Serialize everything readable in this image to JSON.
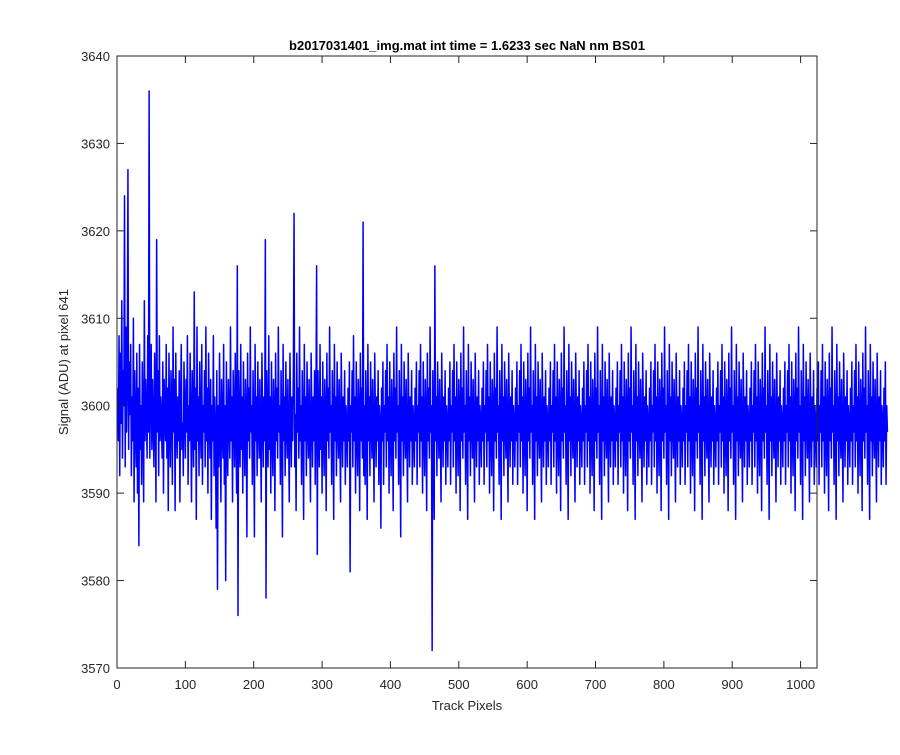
{
  "chart_data": {
    "type": "line",
    "title": "b2017031401_img.mat int time = 1.6233 sec  NaN nm BS01",
    "xlabel": "Track Pixels",
    "ylabel": "Signal (ADU) at pixel 641",
    "xlim": [
      0,
      1024
    ],
    "ylim": [
      3570,
      3640
    ],
    "xticks": [
      0,
      100,
      200,
      300,
      400,
      500,
      600,
      700,
      800,
      900,
      1000
    ],
    "yticks": [
      3570,
      3580,
      3590,
      3600,
      3610,
      3620,
      3630,
      3640
    ],
    "grid": false,
    "line_color": "#0000ff",
    "series": [
      {
        "x_start": 1,
        "x_step": 1,
        "values": [
          3602,
          3596,
          3608,
          3592,
          3606,
          3598,
          3612,
          3594,
          3604,
          3600,
          3624,
          3593,
          3609,
          3597,
          3603,
          3627,
          3595,
          3605,
          3599,
          3607,
          3592,
          3601,
          3596,
          3610,
          3589,
          3604,
          3598,
          3593,
          3606,
          3590,
          3602,
          3584,
          3607,
          3595,
          3600,
          3591,
          3605,
          3598,
          3589,
          3612,
          3596,
          3603,
          3599,
          3594,
          3608,
          3597,
          3636,
          3594,
          3601,
          3607,
          3595,
          3603,
          3598,
          3593,
          3606,
          3600,
          3589,
          3619,
          3597,
          3604,
          3592,
          3608,
          3596,
          3601,
          3598,
          3594,
          3605,
          3590,
          3603,
          3599,
          3596,
          3607,
          3594,
          3602,
          3588,
          3606,
          3598,
          3593,
          3604,
          3600,
          3591,
          3609,
          3597,
          3603,
          3588,
          3606,
          3598,
          3594,
          3601,
          3596,
          3604,
          3589,
          3600,
          3607,
          3595,
          3598,
          3592,
          3605,
          3599,
          3594,
          3603,
          3597,
          3608,
          3591,
          3600,
          3596,
          3606,
          3598,
          3589,
          3604,
          3599,
          3593,
          3613,
          3595,
          3602,
          3587,
          3609,
          3596,
          3601,
          3592,
          3605,
          3598,
          3594,
          3607,
          3591,
          3600,
          3597,
          3604,
          3593,
          3609,
          3596,
          3602,
          3590,
          3606,
          3599,
          3594,
          3603,
          3587,
          3600,
          3596,
          3608,
          3592,
          3601,
          3597,
          3586,
          3604,
          3579,
          3600,
          3593,
          3606,
          3597,
          3589,
          3603,
          3598,
          3594,
          3607,
          3591,
          3600,
          3580,
          3605,
          3597,
          3592,
          3603,
          3598,
          3594,
          3609,
          3596,
          3601,
          3589,
          3604,
          3599,
          3593,
          3606,
          3597,
          3590,
          3616,
          3576,
          3604,
          3598,
          3593,
          3607,
          3595,
          3601,
          3590,
          3605,
          3597,
          3592,
          3603,
          3599,
          3585,
          3606,
          3596,
          3602,
          3594,
          3609,
          3597,
          3600,
          3591,
          3604,
          3598,
          3585,
          3607,
          3596,
          3601,
          3592,
          3605,
          3598,
          3594,
          3603,
          3597,
          3589,
          3606,
          3599,
          3593,
          3601,
          3596,
          3619,
          3578,
          3604,
          3598,
          3593,
          3608,
          3595,
          3601,
          3590,
          3605,
          3597,
          3592,
          3603,
          3599,
          3588,
          3606,
          3596,
          3602,
          3594,
          3609,
          3597,
          3600,
          3591,
          3604,
          3598,
          3585,
          3607,
          3596,
          3601,
          3592,
          3605,
          3598,
          3594,
          3603,
          3597,
          3589,
          3606,
          3599,
          3593,
          3601,
          3596,
          3604,
          3622,
          3593,
          3599,
          3588,
          3606,
          3597,
          3602,
          3594,
          3609,
          3596,
          3600,
          3591,
          3604,
          3598,
          3587,
          3607,
          3596,
          3601,
          3592,
          3605,
          3598,
          3594,
          3603,
          3597,
          3589,
          3606,
          3599,
          3593,
          3601,
          3596,
          3604,
          3591,
          3600,
          3616,
          3583,
          3604,
          3598,
          3593,
          3607,
          3595,
          3601,
          3590,
          3605,
          3597,
          3592,
          3603,
          3599,
          3588,
          3606,
          3596,
          3602,
          3594,
          3609,
          3597,
          3600,
          3591,
          3604,
          3598,
          3587,
          3607,
          3596,
          3601,
          3592,
          3605,
          3598,
          3594,
          3603,
          3597,
          3589,
          3606,
          3599,
          3593,
          3601,
          3596,
          3604,
          3591,
          3600,
          3598,
          3593,
          3602,
          3596,
          3605,
          3581,
          3600,
          3597,
          3604,
          3593,
          3608,
          3596,
          3601,
          3590,
          3605,
          3597,
          3592,
          3603,
          3599,
          3588,
          3606,
          3596,
          3602,
          3594,
          3621,
          3592,
          3600,
          3591,
          3604,
          3598,
          3587,
          3607,
          3596,
          3601,
          3592,
          3605,
          3598,
          3594,
          3603,
          3597,
          3589,
          3606,
          3599,
          3593,
          3601,
          3596,
          3604,
          3591,
          3600,
          3598,
          3586,
          3602,
          3596,
          3605,
          3591,
          3600,
          3597,
          3604,
          3593,
          3607,
          3596,
          3601,
          3590,
          3605,
          3597,
          3592,
          3603,
          3599,
          3588,
          3606,
          3596,
          3602,
          3594,
          3609,
          3597,
          3600,
          3591,
          3604,
          3598,
          3585,
          3607,
          3596,
          3601,
          3592,
          3605,
          3598,
          3594,
          3603,
          3597,
          3589,
          3606,
          3599,
          3593,
          3601,
          3596,
          3604,
          3591,
          3600,
          3598,
          3593,
          3602,
          3596,
          3605,
          3591,
          3600,
          3597,
          3604,
          3593,
          3607,
          3596,
          3601,
          3590,
          3605,
          3597,
          3592,
          3603,
          3599,
          3588,
          3606,
          3596,
          3602,
          3594,
          3609,
          3597,
          3600,
          3572,
          3604,
          3598,
          3587,
          3616,
          3596,
          3601,
          3592,
          3605,
          3598,
          3594,
          3603,
          3597,
          3589,
          3606,
          3599,
          3593,
          3601,
          3596,
          3604,
          3591,
          3600,
          3598,
          3593,
          3602,
          3596,
          3605,
          3591,
          3600,
          3597,
          3604,
          3593,
          3607,
          3596,
          3601,
          3590,
          3605,
          3597,
          3592,
          3603,
          3599,
          3588,
          3606,
          3596,
          3602,
          3594,
          3609,
          3597,
          3600,
          3591,
          3604,
          3598,
          3587,
          3607,
          3596,
          3601,
          3592,
          3605,
          3598,
          3594,
          3603,
          3597,
          3589,
          3606,
          3599,
          3593,
          3601,
          3596,
          3604,
          3591,
          3600,
          3598,
          3593,
          3602,
          3596,
          3605,
          3591,
          3600,
          3597,
          3604,
          3593,
          3607,
          3596,
          3601,
          3590,
          3605,
          3597,
          3592,
          3603,
          3599,
          3588,
          3606,
          3596,
          3602,
          3594,
          3609,
          3597,
          3600,
          3591,
          3604,
          3598,
          3587,
          3607,
          3596,
          3601,
          3592,
          3605,
          3598,
          3594,
          3603,
          3597,
          3589,
          3606,
          3599,
          3593,
          3601,
          3596,
          3604,
          3591,
          3600,
          3598,
          3593,
          3602,
          3596,
          3605,
          3591,
          3600,
          3597,
          3604,
          3593,
          3607,
          3596,
          3601,
          3590,
          3605,
          3597,
          3592,
          3603,
          3599,
          3588,
          3606,
          3596,
          3602,
          3594,
          3609,
          3597,
          3600,
          3591,
          3604,
          3598,
          3587,
          3607,
          3596,
          3601,
          3592,
          3605,
          3598,
          3594,
          3603,
          3597,
          3589,
          3606,
          3599,
          3593,
          3601,
          3596,
          3604,
          3591,
          3600,
          3598,
          3593,
          3602,
          3596,
          3605,
          3591,
          3600,
          3597,
          3604,
          3593,
          3607,
          3596,
          3601,
          3590,
          3605,
          3597,
          3592,
          3603,
          3599,
          3588,
          3606,
          3596,
          3602,
          3594,
          3609,
          3597,
          3600,
          3591,
          3604,
          3598,
          3587,
          3607,
          3596,
          3601,
          3592,
          3605,
          3598,
          3594,
          3603,
          3597,
          3589,
          3606,
          3599,
          3593,
          3601,
          3596,
          3604,
          3591,
          3600,
          3598,
          3593,
          3602,
          3596,
          3605,
          3591,
          3600,
          3597,
          3604,
          3593,
          3607,
          3596,
          3601,
          3590,
          3605,
          3597,
          3592,
          3603,
          3599,
          3588,
          3606,
          3596,
          3602,
          3594,
          3609,
          3597,
          3600,
          3591,
          3604,
          3598,
          3587,
          3607,
          3596,
          3601,
          3592,
          3605,
          3598,
          3594,
          3603,
          3597,
          3589,
          3606,
          3599,
          3593,
          3601,
          3596,
          3604,
          3591,
          3600,
          3598,
          3593,
          3602,
          3596,
          3605,
          3591,
          3600,
          3597,
          3604,
          3593,
          3607,
          3596,
          3601,
          3590,
          3605,
          3597,
          3592,
          3603,
          3599,
          3588,
          3606,
          3596,
          3602,
          3594,
          3609,
          3597,
          3600,
          3591,
          3604,
          3598,
          3587,
          3607,
          3596,
          3601,
          3592,
          3605,
          3598,
          3594,
          3603,
          3597,
          3589,
          3606,
          3599,
          3593,
          3601,
          3596,
          3604,
          3591,
          3600,
          3598,
          3593,
          3602,
          3596,
          3605,
          3591,
          3600,
          3597,
          3604,
          3593,
          3607,
          3596,
          3601,
          3590,
          3605,
          3597,
          3592,
          3603,
          3599,
          3588,
          3606,
          3596,
          3602,
          3594,
          3609,
          3597,
          3600,
          3591,
          3604,
          3598,
          3587,
          3607,
          3596,
          3601,
          3592,
          3605,
          3598,
          3594,
          3603,
          3597,
          3589,
          3606,
          3599,
          3593,
          3601,
          3596,
          3604,
          3591,
          3600,
          3598,
          3593,
          3602,
          3596,
          3605,
          3591,
          3600,
          3597,
          3604,
          3593,
          3607,
          3596,
          3601,
          3590,
          3605,
          3597,
          3592,
          3603,
          3599,
          3588,
          3606,
          3596,
          3602,
          3594,
          3609,
          3597,
          3600,
          3591,
          3604,
          3598,
          3587,
          3607,
          3596,
          3601,
          3592,
          3605,
          3598,
          3594,
          3603,
          3597,
          3589,
          3606,
          3599,
          3593,
          3601,
          3596,
          3604,
          3591,
          3600,
          3598,
          3593,
          3602,
          3596,
          3605,
          3591,
          3600,
          3597,
          3604,
          3593,
          3607,
          3596,
          3601,
          3590,
          3605,
          3597,
          3592,
          3603,
          3599,
          3588,
          3606,
          3596,
          3602,
          3594,
          3609,
          3597,
          3600,
          3591,
          3604,
          3598,
          3587,
          3607,
          3596,
          3601,
          3592,
          3605,
          3598,
          3594,
          3603,
          3597,
          3589,
          3606,
          3599,
          3593,
          3601,
          3596,
          3604,
          3591,
          3600,
          3598,
          3593,
          3602,
          3596,
          3605,
          3591,
          3600,
          3597,
          3604,
          3593,
          3607,
          3596,
          3601,
          3590,
          3605,
          3597,
          3592,
          3603,
          3599,
          3588,
          3606,
          3596,
          3602,
          3594,
          3609,
          3597,
          3600,
          3591,
          3604,
          3598,
          3587,
          3607,
          3596,
          3601,
          3592,
          3605,
          3598,
          3594,
          3603,
          3597,
          3589,
          3606,
          3599,
          3593,
          3601,
          3596,
          3604,
          3591,
          3600,
          3598,
          3593,
          3602,
          3596,
          3605,
          3591,
          3600,
          3597,
          3604,
          3593,
          3607,
          3596,
          3601,
          3590,
          3605,
          3597,
          3592,
          3603,
          3599,
          3588,
          3606,
          3596,
          3602,
          3594,
          3609,
          3597,
          3600,
          3591,
          3604,
          3598,
          3587,
          3607,
          3596,
          3601,
          3592,
          3605,
          3598,
          3594,
          3603,
          3597,
          3589,
          3606,
          3599,
          3593,
          3601,
          3596,
          3604,
          3591,
          3600,
          3598,
          3593,
          3602,
          3596,
          3605,
          3591,
          3600,
          3597,
          3604,
          3593,
          3607,
          3596,
          3601,
          3590,
          3605,
          3597,
          3592,
          3603,
          3599,
          3588,
          3606,
          3596,
          3602,
          3594,
          3609,
          3597,
          3600,
          3591,
          3604,
          3598,
          3587,
          3607,
          3596,
          3601,
          3592,
          3605,
          3598,
          3594,
          3603,
          3597,
          3589,
          3606,
          3599,
          3593,
          3601,
          3596,
          3604,
          3591,
          3600,
          3598,
          3593,
          3602,
          3596,
          3605,
          3591,
          3600,
          3597,
          3604,
          3593,
          3607,
          3596,
          3601,
          3590,
          3605,
          3597,
          3592,
          3603,
          3599,
          3588,
          3606,
          3596,
          3602,
          3594,
          3609,
          3597,
          3600,
          3591,
          3604,
          3598,
          3587,
          3607,
          3596,
          3601,
          3592,
          3605,
          3598,
          3594,
          3603,
          3597,
          3589,
          3606,
          3599,
          3593,
          3601,
          3596,
          3604,
          3591,
          3600,
          3598,
          3593,
          3602,
          3596,
          3605,
          3591,
          3600,
          3597
        ]
      }
    ]
  }
}
